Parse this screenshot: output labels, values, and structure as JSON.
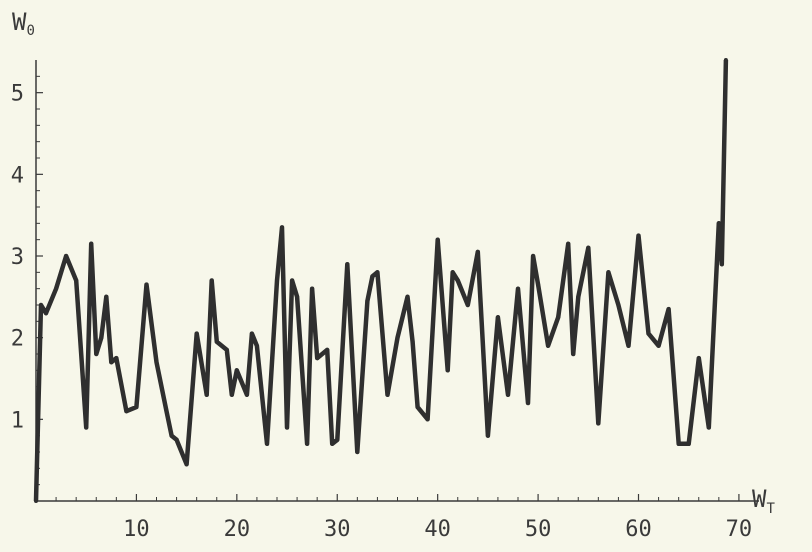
{
  "chart_data": {
    "type": "line",
    "title": "",
    "xlabel": {
      "main": "W",
      "sub": "T"
    },
    "ylabel": {
      "main": "W",
      "sub": "0"
    },
    "xlim": [
      0,
      72
    ],
    "ylim": [
      0,
      5.4
    ],
    "grid": false,
    "xticks": [
      10,
      20,
      30,
      40,
      50,
      60,
      70
    ],
    "yticks": [
      1,
      2,
      3,
      4,
      5
    ],
    "colors": {
      "line": "#2f2f2f",
      "axis": "#3a3a3a",
      "background": "#f7f7ea"
    },
    "series": [
      {
        "x": [
          0,
          0.5,
          1,
          2,
          3,
          4,
          5,
          5.5,
          6,
          6.5,
          7,
          7.5,
          8,
          9,
          10,
          11,
          12,
          13,
          13.5,
          14,
          15,
          16,
          17,
          17.5,
          18,
          19,
          19.5,
          20,
          21,
          21.5,
          22,
          23,
          24,
          24.5,
          25,
          25.5,
          26,
          27,
          27.5,
          28,
          29,
          29.5,
          30,
          31,
          32,
          33,
          33.5,
          34,
          35,
          36,
          37,
          37.5,
          38,
          39,
          40,
          41,
          41.5,
          42,
          43,
          44,
          45,
          46,
          47,
          48,
          49,
          49.5,
          50,
          51,
          52,
          53,
          53.5,
          54,
          55,
          56,
          57,
          57.5,
          58,
          59,
          60,
          61,
          62,
          63,
          64,
          65,
          66,
          67,
          68,
          68.3,
          68.7
        ],
        "y": [
          0,
          2.4,
          2.3,
          2.6,
          3.0,
          2.7,
          0.9,
          3.15,
          1.8,
          2.0,
          2.5,
          1.7,
          1.75,
          1.1,
          1.15,
          2.65,
          1.7,
          1.1,
          0.8,
          0.75,
          0.45,
          2.05,
          1.3,
          2.7,
          1.95,
          1.85,
          1.3,
          1.6,
          1.3,
          2.05,
          1.9,
          0.7,
          2.7,
          3.35,
          0.9,
          2.7,
          2.5,
          0.7,
          2.6,
          1.75,
          1.85,
          0.7,
          0.75,
          2.9,
          0.6,
          2.45,
          2.75,
          2.8,
          1.3,
          2.0,
          2.5,
          1.95,
          1.15,
          1.0,
          3.2,
          1.6,
          2.8,
          2.7,
          2.4,
          3.05,
          0.8,
          2.25,
          1.3,
          2.6,
          1.2,
          3.0,
          2.65,
          1.9,
          2.25,
          3.15,
          1.8,
          2.5,
          3.1,
          0.95,
          2.8,
          2.6,
          2.4,
          1.9,
          3.25,
          2.05,
          1.9,
          2.35,
          0.7,
          0.7,
          1.75,
          0.9,
          3.4,
          2.9,
          5.4
        ]
      }
    ]
  }
}
